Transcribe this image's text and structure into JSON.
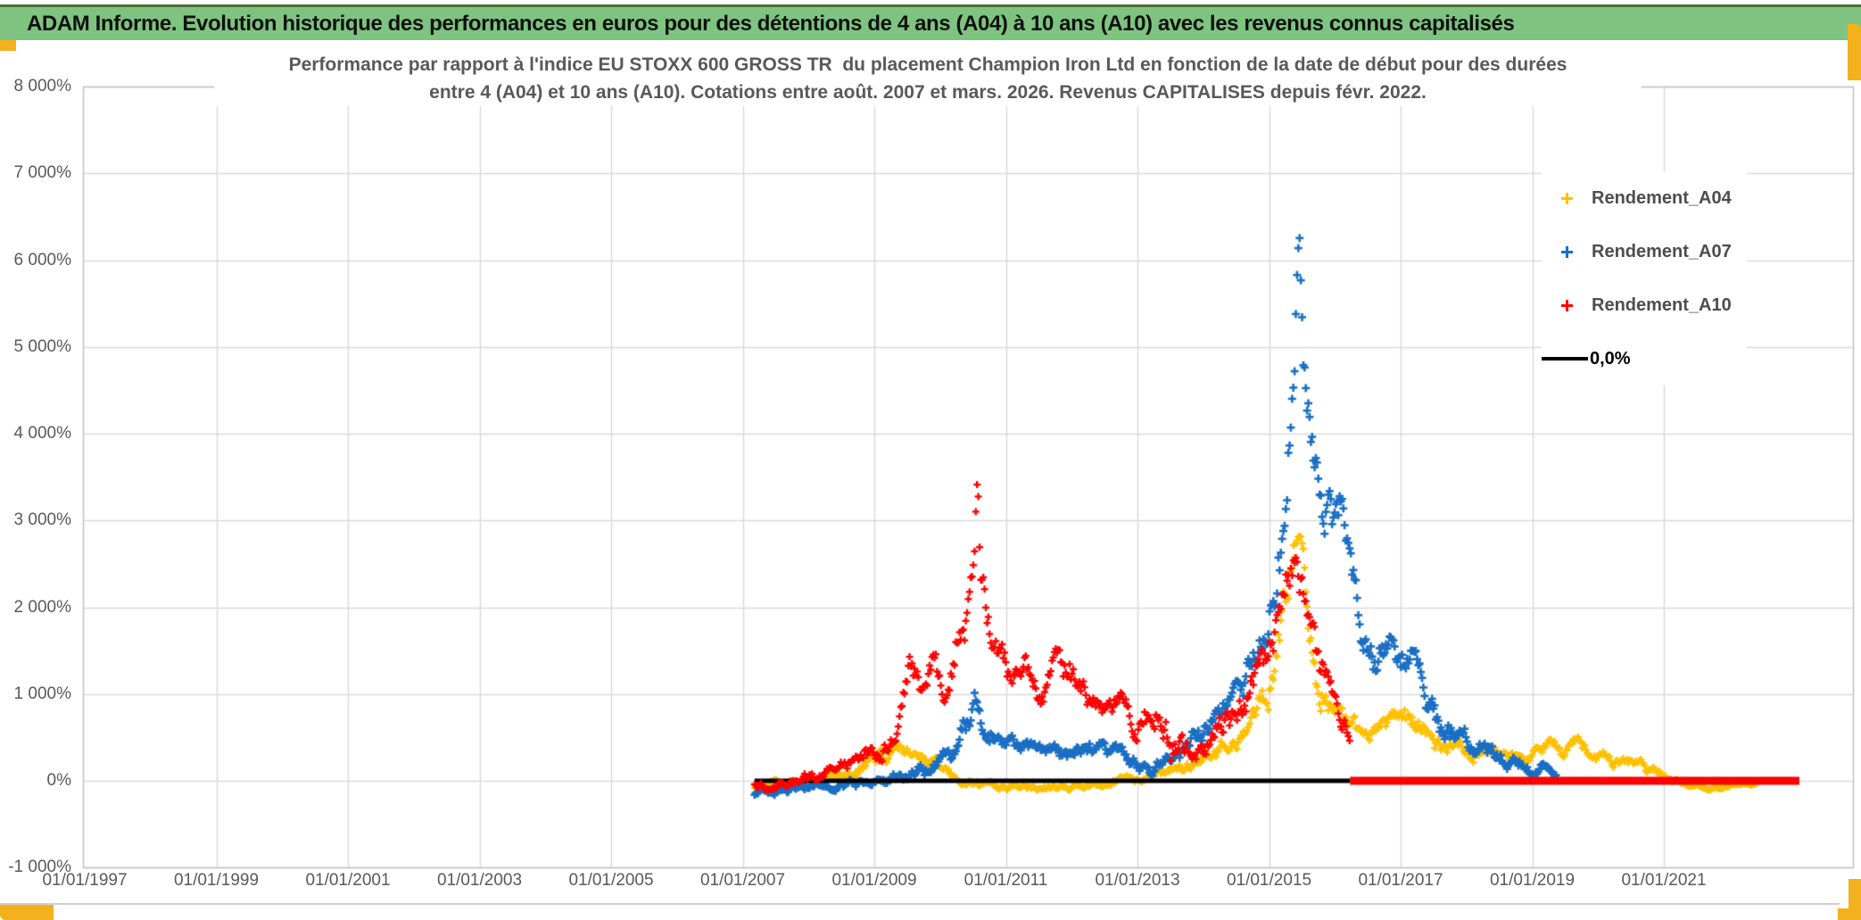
{
  "header": {
    "title": "ADAM Informe. Evolution historique des performances en euros pour des détentions de 4 ans (A04) à 10 ans (A10) avec les revenus connus capitalisés"
  },
  "chart": {
    "subtitle_line1": "Performance par rapport à l'indice EU STOXX 600 GROSS TR  du placement Champion Iron Ltd en fonction de la date de début pour des durées",
    "subtitle_line2": "entre 4 (A04) et 10 ans (A10). Cotations entre août. 2007 et mars. 2026. Revenus CAPITALISES depuis févr. 2022."
  },
  "legend": {
    "items": [
      {
        "label": "Rendement_A04",
        "color": "#FFC000",
        "marker": "plus"
      },
      {
        "label": "Rendement_A07",
        "color": "#1A6FC4",
        "marker": "plus"
      },
      {
        "label": "Rendement_A10",
        "color": "#FF0000",
        "marker": "plus"
      },
      {
        "label": "0,0%",
        "color": "#000000",
        "marker": "line"
      }
    ]
  },
  "colors": {
    "header_green": "#7EC480",
    "gold_border": "#F2B11D",
    "grid": "#D9D9D9",
    "plot_border": "#BFBFBF",
    "text_gray": "#595959"
  },
  "chart_data": {
    "type": "scatter",
    "title": "Performance par rapport à l'indice EU STOXX 600 GROSS TR du placement Champion Iron Ltd en fonction de la date de début pour des durées entre 4 (A04) et 10 ans (A10). Cotations entre août. 2007 et mars. 2026. Revenus CAPITALISES depuis févr. 2022.",
    "legend_position": "right-top",
    "grid": true,
    "y_axis": {
      "min": -1000,
      "max": 8000,
      "step": 1000,
      "unit": "%",
      "labels": [
        "8 000%",
        "7 000%",
        "6 000%",
        "5 000%",
        "4 000%",
        "3 000%",
        "2 000%",
        "1 000%",
        "0%",
        "-1 000%"
      ]
    },
    "x_axis": {
      "start_year": 1997,
      "step_years": 2,
      "end_of_axis_year": 2023.87,
      "labels": [
        "01/01/1997",
        "01/01/1999",
        "01/01/2001",
        "01/01/2003",
        "01/01/2005",
        "01/01/2007",
        "01/01/2009",
        "01/01/2011",
        "01/01/2013",
        "01/01/2015",
        "01/01/2017",
        "01/01/2019",
        "01/01/2021"
      ]
    },
    "sample_step_years": 0.019,
    "series": [
      {
        "name": "Rendement_A04",
        "color": "#FFC000",
        "seed": 4,
        "marker_size": 8,
        "marker_thickness": 2.4,
        "keypoints": [
          [
            2007.18,
            -60,
            40
          ],
          [
            2007.6,
            -30,
            50
          ],
          [
            2008.0,
            10,
            60
          ],
          [
            2008.4,
            60,
            70
          ],
          [
            2008.8,
            150,
            90
          ],
          [
            2009.1,
            230,
            100
          ],
          [
            2009.4,
            390,
            120
          ],
          [
            2009.6,
            420,
            120
          ],
          [
            2009.8,
            260,
            100
          ],
          [
            2010.0,
            130,
            80
          ],
          [
            2010.3,
            10,
            60
          ],
          [
            2010.6,
            -60,
            40
          ],
          [
            2011.0,
            -65,
            40
          ],
          [
            2011.5,
            -80,
            40
          ],
          [
            2012.0,
            -60,
            40
          ],
          [
            2012.5,
            -40,
            40
          ],
          [
            2012.9,
            0,
            50
          ],
          [
            2013.2,
            60,
            60
          ],
          [
            2013.6,
            130,
            70
          ],
          [
            2014.0,
            210,
            90
          ],
          [
            2014.4,
            390,
            120
          ],
          [
            2014.7,
            620,
            150
          ],
          [
            2015.0,
            1050,
            250
          ],
          [
            2015.2,
            1900,
            400
          ],
          [
            2015.35,
            2750,
            420
          ],
          [
            2015.45,
            2600,
            400
          ],
          [
            2015.6,
            1700,
            330
          ],
          [
            2015.75,
            1100,
            250
          ],
          [
            2015.95,
            820,
            200
          ],
          [
            2016.15,
            700,
            180
          ],
          [
            2016.4,
            520,
            150
          ],
          [
            2016.65,
            620,
            150
          ],
          [
            2016.9,
            820,
            160
          ],
          [
            2017.1,
            780,
            160
          ],
          [
            2017.35,
            540,
            140
          ],
          [
            2017.6,
            360,
            110
          ],
          [
            2017.85,
            380,
            110
          ],
          [
            2018.1,
            290,
            100
          ],
          [
            2018.4,
            430,
            110
          ],
          [
            2018.65,
            290,
            90
          ],
          [
            2018.95,
            310,
            90
          ],
          [
            2019.2,
            410,
            110
          ],
          [
            2019.45,
            290,
            90
          ],
          [
            2019.7,
            440,
            110
          ],
          [
            2019.95,
            300,
            90
          ],
          [
            2020.25,
            190,
            80
          ],
          [
            2020.55,
            210,
            80
          ],
          [
            2020.85,
            110,
            60
          ],
          [
            2021.1,
            10,
            40
          ],
          [
            2021.4,
            -60,
            30
          ],
          [
            2021.8,
            -90,
            28
          ],
          [
            2022.1,
            -60,
            24
          ],
          [
            2022.4,
            -30,
            20
          ]
        ]
      },
      {
        "name": "Rendement_A07",
        "color": "#1A6FC4",
        "seed": 7,
        "marker_size": 9,
        "marker_thickness": 2.6,
        "keypoints": [
          [
            2007.18,
            -130,
            50
          ],
          [
            2007.7,
            -110,
            55
          ],
          [
            2008.2,
            -70,
            60
          ],
          [
            2008.7,
            -40,
            60
          ],
          [
            2009.1,
            0,
            60
          ],
          [
            2009.5,
            80,
            70
          ],
          [
            2009.9,
            150,
            85
          ],
          [
            2010.2,
            320,
            110
          ],
          [
            2010.45,
            700,
            220
          ],
          [
            2010.56,
            950,
            260
          ],
          [
            2010.7,
            560,
            150
          ],
          [
            2010.9,
            430,
            120
          ],
          [
            2011.2,
            380,
            105
          ],
          [
            2011.6,
            330,
            100
          ],
          [
            2012.0,
            310,
            100
          ],
          [
            2012.4,
            360,
            110
          ],
          [
            2012.8,
            310,
            100
          ],
          [
            2013.05,
            190,
            90
          ],
          [
            2013.2,
            100,
            70
          ],
          [
            2013.45,
            260,
            100
          ],
          [
            2013.75,
            420,
            120
          ],
          [
            2014.05,
            620,
            150
          ],
          [
            2014.35,
            830,
            180
          ],
          [
            2014.65,
            1150,
            220
          ],
          [
            2014.9,
            1700,
            300
          ],
          [
            2015.1,
            2400,
            380
          ],
          [
            2015.28,
            3700,
            550
          ],
          [
            2015.4,
            5500,
            800
          ],
          [
            2015.45,
            5900,
            650
          ],
          [
            2015.55,
            4700,
            450
          ],
          [
            2015.68,
            4000,
            400
          ],
          [
            2015.82,
            3300,
            380
          ],
          [
            2015.98,
            3000,
            350
          ],
          [
            2016.1,
            3050,
            350
          ],
          [
            2016.25,
            2250,
            400
          ],
          [
            2016.42,
            1600,
            300
          ],
          [
            2016.6,
            1380,
            250
          ],
          [
            2016.8,
            1580,
            250
          ],
          [
            2017.0,
            1380,
            250
          ],
          [
            2017.18,
            1480,
            260
          ],
          [
            2017.35,
            1000,
            220
          ],
          [
            2017.55,
            680,
            180
          ],
          [
            2017.8,
            500,
            150
          ],
          [
            2018.1,
            380,
            120
          ],
          [
            2018.45,
            290,
            100
          ],
          [
            2018.75,
            210,
            90
          ],
          [
            2019.0,
            150,
            80
          ],
          [
            2019.2,
            170,
            80
          ],
          [
            2019.37,
            80,
            50
          ]
        ]
      },
      {
        "name": "Rendement_A10",
        "color": "#FF0000",
        "seed": 11,
        "marker_size": 8,
        "marker_thickness": 2.4,
        "keypoints": [
          [
            2007.18,
            -70,
            60
          ],
          [
            2007.6,
            -40,
            60
          ],
          [
            2008.0,
            20,
            70
          ],
          [
            2008.5,
            150,
            90
          ],
          [
            2008.85,
            280,
            110
          ],
          [
            2009.1,
            300,
            120
          ],
          [
            2009.35,
            550,
            150
          ],
          [
            2009.57,
            1450,
            280
          ],
          [
            2009.72,
            1050,
            200
          ],
          [
            2009.9,
            1300,
            240
          ],
          [
            2010.08,
            850,
            180
          ],
          [
            2010.25,
            1500,
            300
          ],
          [
            2010.4,
            1850,
            280
          ],
          [
            2010.5,
            2700,
            500
          ],
          [
            2010.56,
            3300,
            550
          ],
          [
            2010.63,
            2300,
            400
          ],
          [
            2010.75,
            1700,
            300
          ],
          [
            2010.9,
            1400,
            250
          ],
          [
            2011.1,
            1250,
            220
          ],
          [
            2011.3,
            1300,
            200
          ],
          [
            2011.5,
            1050,
            200
          ],
          [
            2011.75,
            1300,
            220
          ],
          [
            2011.95,
            1300,
            240
          ],
          [
            2012.2,
            950,
            180
          ],
          [
            2012.5,
            780,
            160
          ],
          [
            2012.75,
            880,
            180
          ],
          [
            2013.0,
            600,
            150
          ],
          [
            2013.25,
            800,
            280
          ],
          [
            2013.5,
            480,
            250
          ],
          [
            2013.8,
            320,
            160
          ],
          [
            2014.05,
            480,
            180
          ],
          [
            2014.35,
            620,
            200
          ],
          [
            2014.65,
            950,
            220
          ],
          [
            2014.9,
            1350,
            260
          ],
          [
            2015.1,
            1750,
            300
          ],
          [
            2015.3,
            2300,
            300
          ],
          [
            2015.42,
            2550,
            220
          ],
          [
            2015.55,
            2050,
            350
          ],
          [
            2015.7,
            1500,
            300
          ],
          [
            2015.85,
            1100,
            250
          ],
          [
            2016.0,
            850,
            200
          ],
          [
            2016.15,
            700,
            160
          ],
          [
            2016.23,
            480,
            140
          ]
        ]
      }
    ],
    "reference_lines": [
      {
        "name": "zero-line-black",
        "value": 0,
        "from_year": 2007.18,
        "to_year": 2016.23,
        "color": "#000000",
        "width": 5
      },
      {
        "name": "zero-line-red",
        "value": 0,
        "from_year": 2016.23,
        "to_year": 2023.06,
        "color": "#FF0000",
        "width": 9
      }
    ]
  }
}
